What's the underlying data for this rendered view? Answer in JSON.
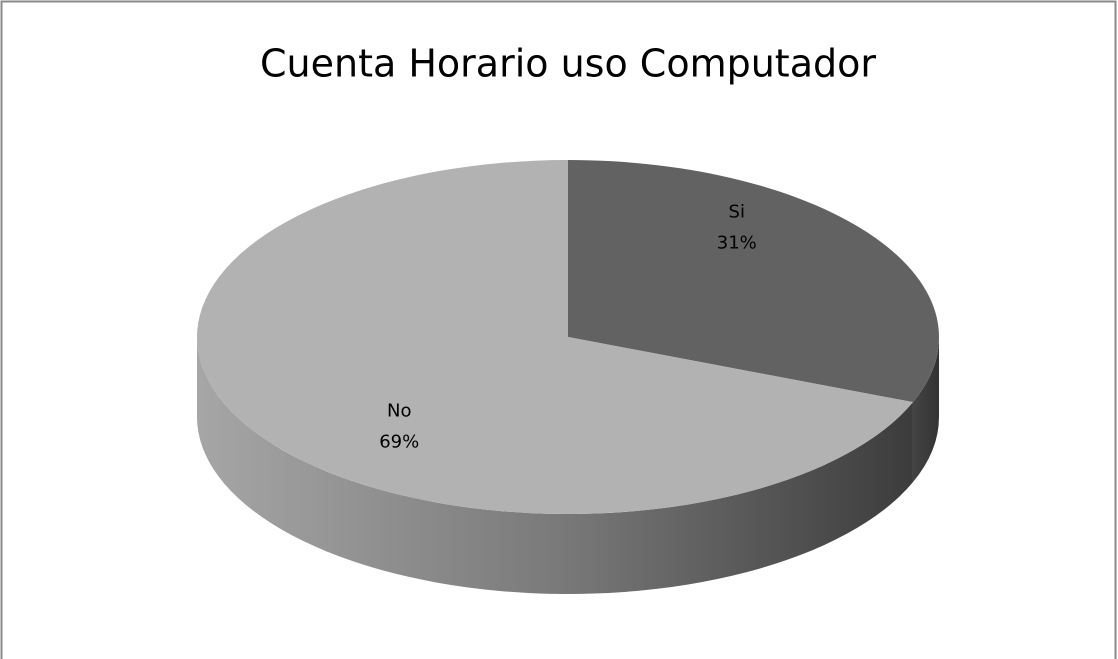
{
  "chart_data": {
    "type": "pie",
    "title": "Cuenta Horario uso Computador",
    "categories": [
      "Si",
      "No"
    ],
    "values": [
      31,
      69
    ],
    "value_labels": [
      "31%",
      "69%"
    ],
    "colors": [
      "#626262",
      "#b2b2b2"
    ],
    "three_d": true
  }
}
